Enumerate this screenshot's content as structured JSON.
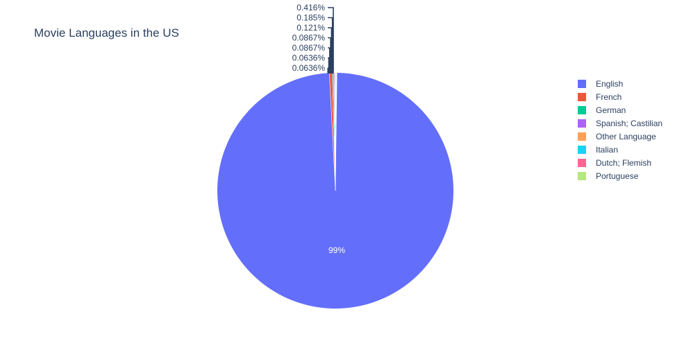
{
  "chart_data": {
    "type": "pie",
    "title": "Movie Languages in the US",
    "slices": [
      {
        "label": "English",
        "value": 98.9,
        "display": "99%",
        "color": "#636efa"
      },
      {
        "label": "French",
        "value": 0.416,
        "display": "0.416%",
        "color": "#EF553B"
      },
      {
        "label": "German",
        "value": 0.185,
        "display": "0.185%",
        "color": "#00cc96"
      },
      {
        "label": "Spanish; Castilian",
        "value": 0.121,
        "display": "0.121%",
        "color": "#ab63fa"
      },
      {
        "label": "Other Language",
        "value": 0.0867,
        "display": "0.0867%",
        "color": "#FFA15A"
      },
      {
        "label": "Italian",
        "value": 0.0867,
        "display": "0.0867%",
        "color": "#19d3f3"
      },
      {
        "label": "Dutch; Flemish",
        "value": 0.0636,
        "display": "0.0636%",
        "color": "#FF6692"
      },
      {
        "label": "Portuguese",
        "value": 0.0636,
        "display": "0.0636%",
        "color": "#B6E880"
      }
    ],
    "legend_position": "right",
    "direction": "clockwise",
    "start": "top"
  }
}
